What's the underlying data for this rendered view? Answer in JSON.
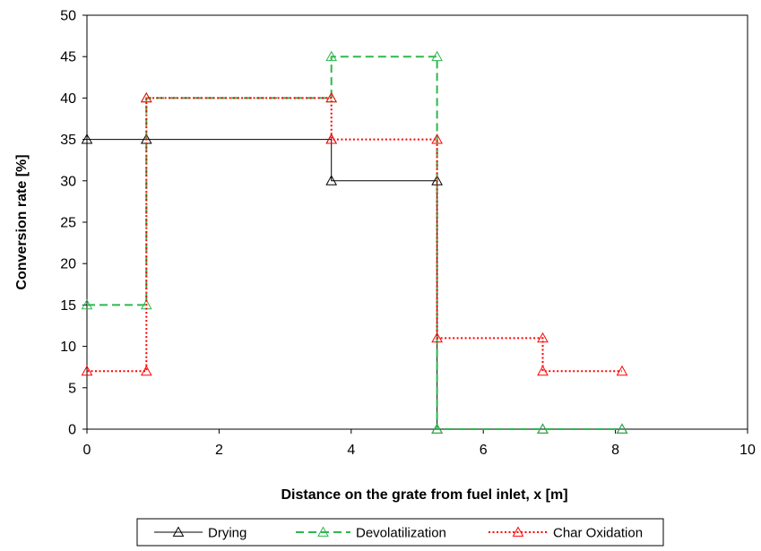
{
  "chart_data": {
    "type": "line",
    "title": "",
    "xlabel": "Distance on the grate from fuel inlet, x [m]",
    "ylabel": "Conversion rate [%]",
    "xlim": [
      0,
      10
    ],
    "ylim": [
      0,
      50
    ],
    "x_ticks": [
      "0",
      "2",
      "4",
      "6",
      "8",
      "10"
    ],
    "y_ticks": [
      "0",
      "5",
      "10",
      "15",
      "20",
      "25",
      "30",
      "35",
      "40",
      "45",
      "50"
    ],
    "grid": false,
    "legend_position": "bottom",
    "series": [
      {
        "name": "Drying",
        "color": "#000000",
        "line_style": "solid",
        "marker": "open-triangle",
        "points": [
          [
            0,
            35
          ],
          [
            0.9,
            35
          ],
          [
            3.7,
            35
          ],
          [
            3.7,
            30
          ],
          [
            5.3,
            30
          ],
          [
            5.3,
            0
          ],
          [
            6.9,
            0
          ],
          [
            8.1,
            0
          ]
        ],
        "markers": [
          [
            0,
            35
          ],
          [
            0.9,
            35
          ],
          [
            3.7,
            35
          ],
          [
            3.7,
            30
          ],
          [
            5.3,
            30
          ],
          [
            5.3,
            0
          ],
          [
            6.9,
            0
          ],
          [
            8.1,
            0
          ]
        ]
      },
      {
        "name": "Devolatilization",
        "color": "#2db84d",
        "line_style": "dashed",
        "marker": "open-triangle",
        "points": [
          [
            0,
            15
          ],
          [
            0.9,
            15
          ],
          [
            0.9,
            40
          ],
          [
            3.7,
            40
          ],
          [
            3.7,
            45
          ],
          [
            5.3,
            45
          ],
          [
            5.3,
            0
          ],
          [
            6.9,
            0
          ],
          [
            8.1,
            0
          ]
        ],
        "markers": [
          [
            0,
            15
          ],
          [
            0.9,
            15
          ],
          [
            0.9,
            40
          ],
          [
            3.7,
            40
          ],
          [
            3.7,
            45
          ],
          [
            5.3,
            45
          ],
          [
            5.3,
            0
          ],
          [
            6.9,
            0
          ],
          [
            8.1,
            0
          ]
        ]
      },
      {
        "name": "Char Oxidation",
        "color": "#ff0000",
        "line_style": "dotted",
        "marker": "open-triangle",
        "points": [
          [
            0,
            7
          ],
          [
            0.9,
            7
          ],
          [
            0.9,
            40
          ],
          [
            3.7,
            40
          ],
          [
            3.7,
            35
          ],
          [
            5.3,
            35
          ],
          [
            5.3,
            11
          ],
          [
            6.9,
            11
          ],
          [
            6.9,
            7
          ],
          [
            8.1,
            7
          ]
        ],
        "markers": [
          [
            0,
            7
          ],
          [
            0.9,
            7
          ],
          [
            0.9,
            40
          ],
          [
            3.7,
            40
          ],
          [
            3.7,
            35
          ],
          [
            5.3,
            35
          ],
          [
            5.3,
            11
          ],
          [
            6.9,
            11
          ],
          [
            6.9,
            7
          ],
          [
            8.1,
            7
          ]
        ]
      }
    ]
  }
}
